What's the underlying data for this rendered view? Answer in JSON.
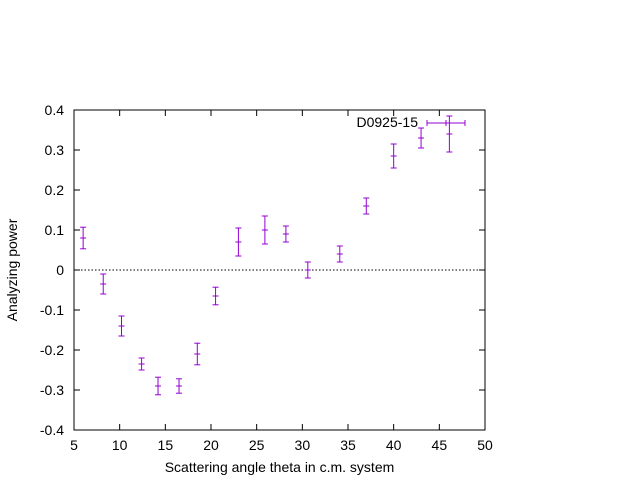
{
  "chart_data": {
    "type": "scatter",
    "title": "",
    "xlabel": "Scattering angle theta in c.m. system",
    "ylabel": "Analyzing power",
    "xlim": [
      5,
      50
    ],
    "ylim": [
      -0.4,
      0.4
    ],
    "xticks": [
      5,
      10,
      15,
      20,
      25,
      30,
      35,
      40,
      45,
      50
    ],
    "yticks": [
      -0.4,
      -0.3,
      -0.2,
      -0.1,
      0,
      0.1,
      0.2,
      0.3,
      0.4
    ],
    "xtick_labels": [
      "5",
      "10",
      "15",
      "20",
      "25",
      "30",
      "35",
      "40",
      "45",
      "50"
    ],
    "ytick_labels": [
      "-0.4",
      "-0.3",
      "-0.2",
      "-0.1",
      "0",
      "0.1",
      "0.2",
      "0.3",
      "0.4"
    ],
    "zero_line": true,
    "legend_position": "top-right",
    "series": [
      {
        "name": "D0925-15",
        "color": "#9400d3",
        "points": [
          {
            "x": 6.0,
            "y": 0.08,
            "yerr": 0.027
          },
          {
            "x": 8.2,
            "y": -0.035,
            "yerr": 0.025
          },
          {
            "x": 10.2,
            "y": -0.14,
            "yerr": 0.025
          },
          {
            "x": 12.4,
            "y": -0.235,
            "yerr": 0.015
          },
          {
            "x": 14.2,
            "y": -0.29,
            "yerr": 0.022
          },
          {
            "x": 16.5,
            "y": -0.29,
            "yerr": 0.018
          },
          {
            "x": 18.5,
            "y": -0.21,
            "yerr": 0.027
          },
          {
            "x": 20.5,
            "y": -0.065,
            "yerr": 0.022
          },
          {
            "x": 23.0,
            "y": 0.07,
            "yerr": 0.035
          },
          {
            "x": 25.9,
            "y": 0.1,
            "yerr": 0.035
          },
          {
            "x": 28.2,
            "y": 0.09,
            "yerr": 0.02
          },
          {
            "x": 30.6,
            "y": 0.0,
            "yerr": 0.02
          },
          {
            "x": 34.1,
            "y": 0.04,
            "yerr": 0.02
          },
          {
            "x": 37.0,
            "y": 0.16,
            "yerr": 0.02
          },
          {
            "x": 40.0,
            "y": 0.285,
            "yerr": 0.03
          },
          {
            "x": 43.0,
            "y": 0.33,
            "yerr": 0.025
          },
          {
            "x": 46.1,
            "y": 0.34,
            "yerr": 0.045
          }
        ]
      }
    ]
  }
}
